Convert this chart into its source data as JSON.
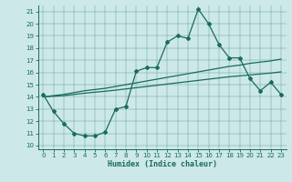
{
  "xlabel": "Humidex (Indice chaleur)",
  "bg_color": "#cce8e8",
  "line_color": "#1a6b5a",
  "xlim": [
    -0.5,
    23.5
  ],
  "ylim": [
    9.7,
    21.5
  ],
  "xticks": [
    0,
    1,
    2,
    3,
    4,
    5,
    6,
    7,
    8,
    9,
    10,
    11,
    12,
    13,
    14,
    15,
    16,
    17,
    18,
    19,
    20,
    21,
    22,
    23
  ],
  "yticks": [
    10,
    11,
    12,
    13,
    14,
    15,
    16,
    17,
    18,
    19,
    20,
    21
  ],
  "line1_x": [
    0,
    1,
    2,
    3,
    4,
    5,
    6,
    7,
    8,
    9,
    10,
    11,
    12,
    13,
    14,
    15,
    16,
    17,
    18,
    19,
    20,
    21,
    22,
    23
  ],
  "line1_y": [
    14.2,
    12.8,
    11.8,
    11.0,
    10.8,
    10.8,
    11.1,
    13.0,
    13.2,
    16.1,
    16.4,
    16.4,
    18.5,
    19.0,
    18.8,
    21.2,
    20.0,
    18.3,
    17.2,
    17.2,
    15.5,
    14.5,
    15.2,
    14.2
  ],
  "line2_x": [
    0,
    1,
    2,
    3,
    4,
    5,
    6,
    7,
    8,
    9,
    10,
    11,
    12,
    13,
    14,
    15,
    16,
    17,
    18,
    19,
    20,
    21,
    22,
    23
  ],
  "line2_y": [
    14.0,
    14.1,
    14.2,
    14.35,
    14.5,
    14.6,
    14.7,
    14.85,
    15.0,
    15.15,
    15.3,
    15.45,
    15.6,
    15.75,
    15.9,
    16.05,
    16.2,
    16.35,
    16.5,
    16.6,
    16.75,
    16.85,
    16.95,
    17.1
  ],
  "line3_x": [
    0,
    1,
    2,
    3,
    4,
    5,
    6,
    7,
    8,
    9,
    10,
    11,
    12,
    13,
    14,
    15,
    16,
    17,
    18,
    19,
    20,
    21,
    22,
    23
  ],
  "line3_y": [
    14.0,
    14.05,
    14.1,
    14.2,
    14.3,
    14.38,
    14.46,
    14.55,
    14.65,
    14.75,
    14.85,
    14.95,
    15.05,
    15.15,
    15.25,
    15.35,
    15.45,
    15.55,
    15.65,
    15.72,
    15.8,
    15.88,
    15.95,
    16.05
  ]
}
